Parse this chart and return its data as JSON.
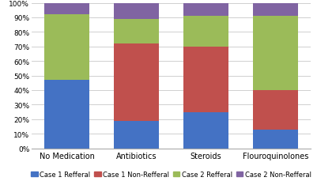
{
  "categories": [
    "No Medication",
    "Antibiotics",
    "Steroids",
    "Flouroquinolones"
  ],
  "series": {
    "Case 1 Refferal": [
      47,
      19,
      25,
      13
    ],
    "Case 1 Non-Refferal": [
      0,
      53,
      45,
      27
    ],
    "Case 2 Refferal": [
      45,
      17,
      21,
      51
    ],
    "Case 2 Non-Refferal": [
      8,
      11,
      9,
      9
    ]
  },
  "colors": {
    "Case 1 Refferal": "#4472c4",
    "Case 1 Non-Refferal": "#c0504d",
    "Case 2 Refferal": "#9bbb59",
    "Case 2 Non-Refferal": "#8064a2"
  },
  "ylim": [
    0,
    100
  ],
  "yticks": [
    0,
    10,
    20,
    30,
    40,
    50,
    60,
    70,
    80,
    90,
    100
  ],
  "ytick_labels": [
    "0%",
    "10%",
    "20%",
    "30%",
    "40%",
    "50%",
    "60%",
    "70%",
    "80%",
    "90%",
    "100%"
  ],
  "legend_order": [
    "Case 1 Refferal",
    "Case 1 Non-Refferal",
    "Case 2 Refferal",
    "Case 2 Non-Refferal"
  ],
  "bar_width": 0.65,
  "figsize": [
    4.01,
    2.3
  ],
  "dpi": 100,
  "grid_color": "#c8c8c8",
  "background_color": "#ffffff",
  "legend_fontsize": 6.0,
  "tick_fontsize": 6.5,
  "label_fontsize": 7.0
}
